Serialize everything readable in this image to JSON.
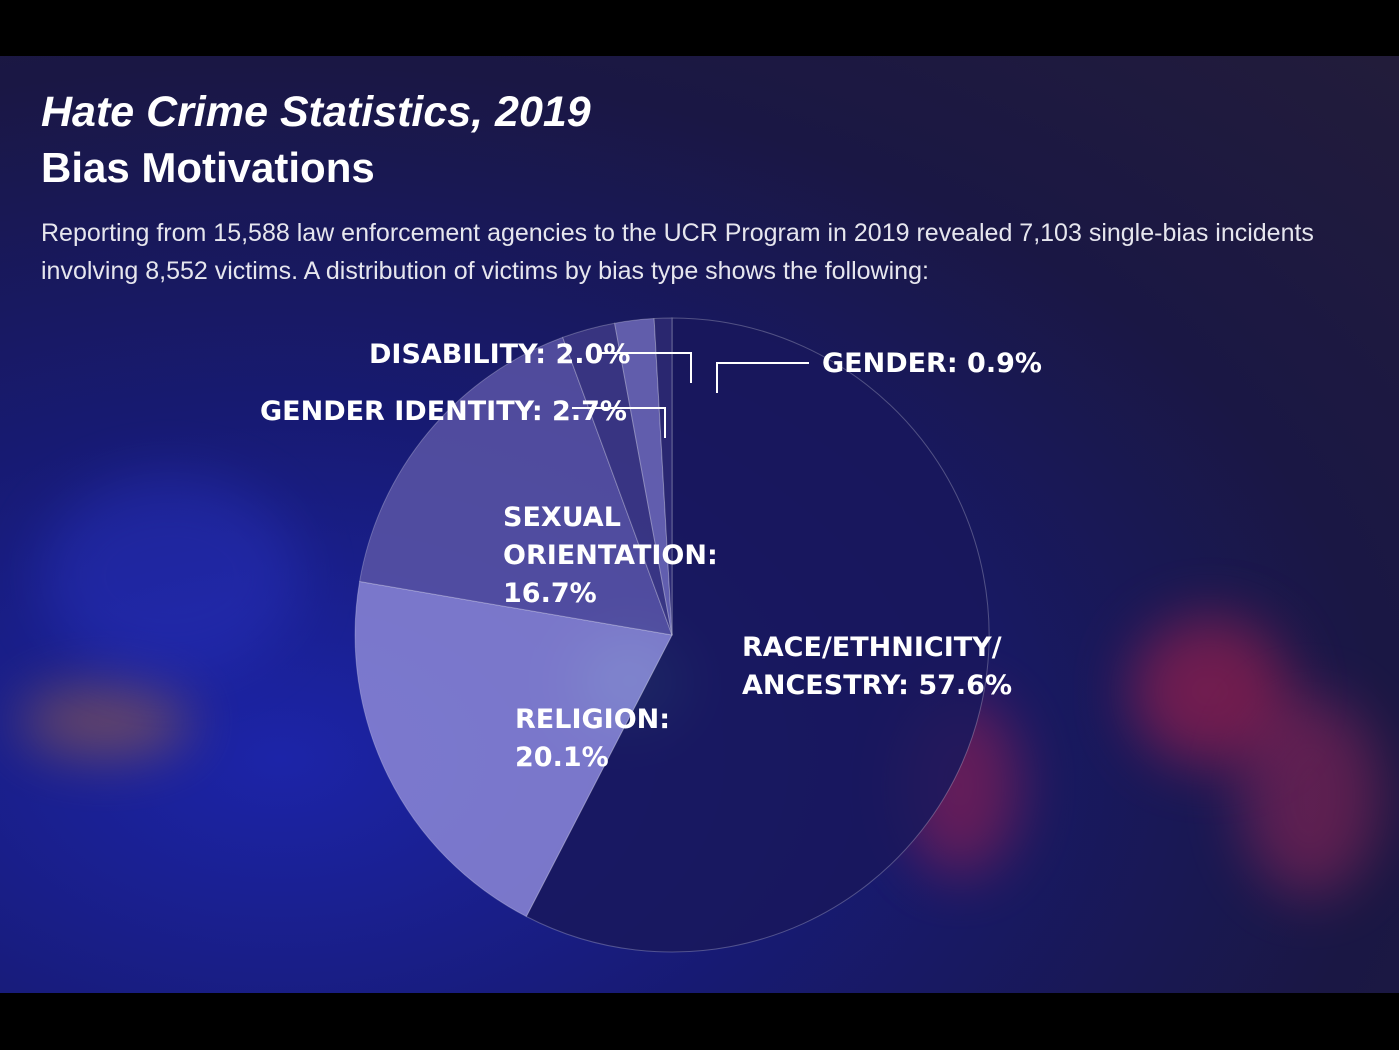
{
  "header": {
    "title": "Hate Crime Statistics, 2019",
    "subtitle": "Bias Motivations",
    "description": "Reporting from 15,588 law enforcement agencies to the UCR Program in 2019 revealed 7,103 single-bias incidents involving 8,552 victims. A distribution of victims by bias type shows the following:"
  },
  "chart_data": {
    "type": "pie",
    "start_angle_deg": 0,
    "direction": "clockwise",
    "slices": [
      {
        "name": "RACE/ETHNICITY/ ANCESTRY",
        "value": 57.6,
        "label_lines": [
          "RACE/ETHNICITY/",
          "ANCESTRY: 57.6%"
        ],
        "color": "#19175c"
      },
      {
        "name": "RELIGION",
        "value": 20.1,
        "label_lines": [
          "RELIGION:",
          "20.1%"
        ],
        "color": "#8c87d6"
      },
      {
        "name": "SEXUAL ORIENTATION",
        "value": 16.7,
        "label_lines": [
          "SEXUAL",
          "ORIENTATION:",
          "16.7%"
        ],
        "color": "#5a55a6"
      },
      {
        "name": "GENDER IDENTITY",
        "value": 2.7,
        "label_lines": [
          "GENDER IDENTITY: 2.7%"
        ],
        "color": "#3e3a86"
      },
      {
        "name": "DISABILITY",
        "value": 2.0,
        "label_lines": [
          "DISABILITY: 2.0%"
        ],
        "color": "#6f6ab8"
      },
      {
        "name": "GENDER",
        "value": 0.9,
        "label_lines": [
          "GENDER: 0.9%"
        ],
        "color": "#2e2a72"
      }
    ]
  }
}
